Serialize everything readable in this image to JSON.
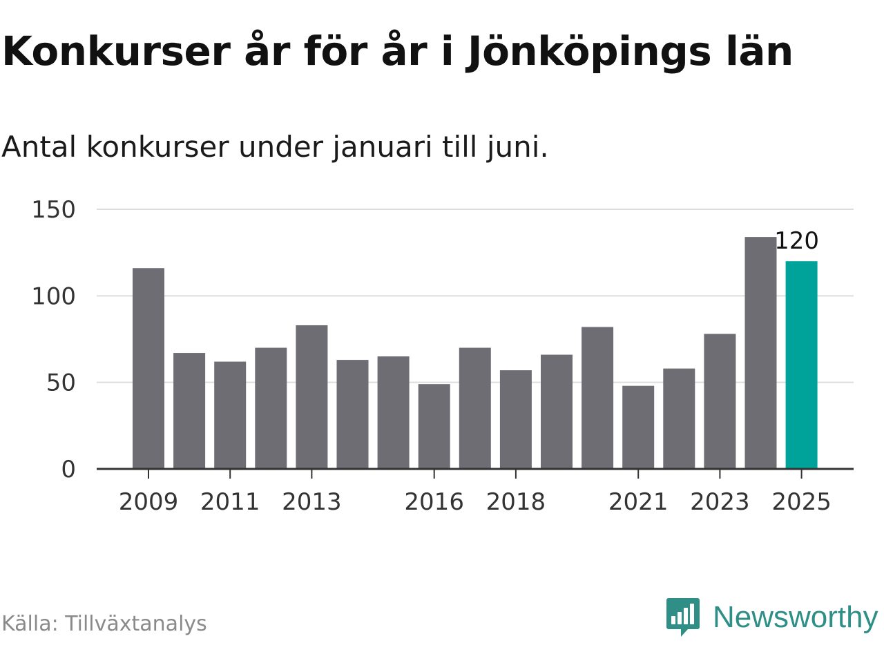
{
  "header": {
    "title": "Konkurser år för år i Jönköpings län",
    "subtitle": "Antal konkurser under januari till juni."
  },
  "footer": {
    "source": "Källa: Tillväxtanalys",
    "brand": "Newsworthy",
    "brand_icon": "newsworthy-logo-icon"
  },
  "colors": {
    "bar": "#6e6d73",
    "highlight": "#00a39a",
    "grid": "#dddddd",
    "axis": "#333333",
    "brand": "#2f8f87"
  },
  "chart_data": {
    "type": "bar",
    "categories": [
      "2009",
      "2010",
      "2011",
      "2012",
      "2013",
      "2014",
      "2015",
      "2016",
      "2017",
      "2018",
      "2019",
      "2020",
      "2021",
      "2022",
      "2023",
      "2024",
      "2025"
    ],
    "values": [
      116,
      67,
      62,
      70,
      83,
      63,
      65,
      49,
      70,
      57,
      66,
      82,
      48,
      58,
      78,
      134,
      120
    ],
    "x_tick_labels": [
      "2009",
      "2011",
      "2013",
      "2016",
      "2018",
      "2021",
      "2023",
      "2025"
    ],
    "ylim": [
      0,
      150
    ],
    "y_ticks": [
      0,
      50,
      100,
      150
    ],
    "highlight_category": "2025",
    "data_labels": [
      {
        "category": "2025",
        "text": "120"
      }
    ],
    "grid": true,
    "legend": false
  }
}
